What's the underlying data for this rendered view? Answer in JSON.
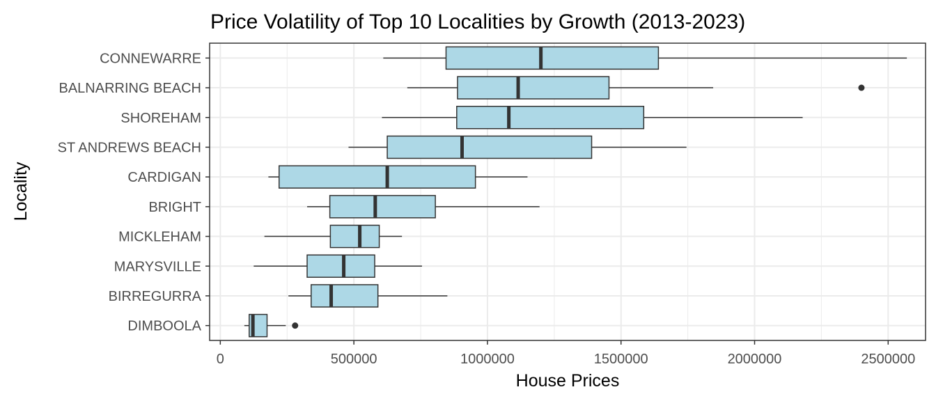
{
  "chart_data": {
    "type": "boxplot",
    "orientation": "horizontal",
    "title": "Price Volatility of Top 10 Localities by Growth (2013-2023)",
    "xlabel": "House Prices",
    "ylabel": "Locality",
    "xlim": [
      -40000,
      2640000
    ],
    "x_ticks": [
      0,
      500000,
      1000000,
      1500000,
      2000000,
      2500000
    ],
    "x_tick_labels": [
      "0",
      "500000",
      "1000000",
      "1500000",
      "2000000",
      "2500000"
    ],
    "grid": true,
    "legend": "none",
    "box_fill": "#add8e6",
    "line_color": "#333333",
    "panel_border_color": "#333333",
    "grid_color": "#ebebeb",
    "localities": [
      {
        "name": "CONNEWARRE",
        "min": 610000,
        "q1": 845000,
        "median": 1200000,
        "q3": 1640000,
        "max": 2570000,
        "outliers": []
      },
      {
        "name": "BALNARRING BEACH",
        "min": 700000,
        "q1": 888000,
        "median": 1115000,
        "q3": 1455000,
        "max": 1845000,
        "outliers": [
          2400000
        ]
      },
      {
        "name": "SHOREHAM",
        "min": 605000,
        "q1": 885000,
        "median": 1080000,
        "q3": 1585000,
        "max": 2180000,
        "outliers": []
      },
      {
        "name": "ST ANDREWS BEACH",
        "min": 480000,
        "q1": 625000,
        "median": 905000,
        "q3": 1390000,
        "max": 1745000,
        "outliers": []
      },
      {
        "name": "CARDIGAN",
        "min": 180000,
        "q1": 220000,
        "median": 625000,
        "q3": 955000,
        "max": 1150000,
        "outliers": []
      },
      {
        "name": "BRIGHT",
        "min": 325000,
        "q1": 410000,
        "median": 580000,
        "q3": 805000,
        "max": 1195000,
        "outliers": []
      },
      {
        "name": "MICKLEHAM",
        "min": 165000,
        "q1": 412000,
        "median": 522000,
        "q3": 595000,
        "max": 680000,
        "outliers": []
      },
      {
        "name": "MARYSVILLE",
        "min": 125000,
        "q1": 325000,
        "median": 462000,
        "q3": 578000,
        "max": 755000,
        "outliers": []
      },
      {
        "name": "BIRREGURRA",
        "min": 255000,
        "q1": 340000,
        "median": 415000,
        "q3": 590000,
        "max": 850000,
        "outliers": []
      },
      {
        "name": "DIMBOOLA",
        "min": 90000,
        "q1": 108000,
        "median": 122000,
        "q3": 175000,
        "max": 245000,
        "outliers": [
          280000
        ]
      }
    ]
  }
}
